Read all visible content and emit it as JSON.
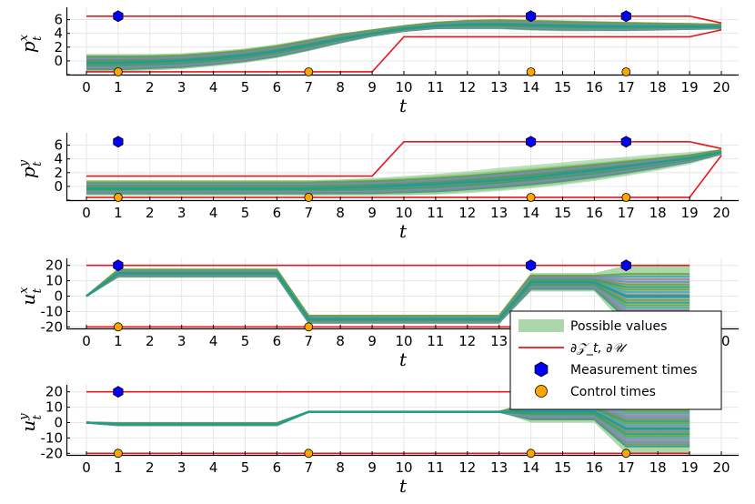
{
  "colors": {
    "band": "#8fca8f",
    "boundary": "#e8171b",
    "measurement": "#0000ff",
    "control": "#ffa500",
    "trajectories": [
      "#1f9e89",
      "#8a8a4a",
      "#5b8fc7",
      "#b07aa1",
      "#3aa6c7",
      "#6e9e3a"
    ]
  },
  "legend": {
    "items": [
      {
        "label": "Possible values",
        "kind": "band"
      },
      {
        "label": "∂𝒵_t, ∂𝒰",
        "kind": "boundary"
      },
      {
        "label": "Measurement times",
        "kind": "measurement"
      },
      {
        "label": "Control times",
        "kind": "control"
      }
    ]
  },
  "chart_data": [
    {
      "type": "area",
      "xlabel": "t",
      "ylabel": "p",
      "ylabel_sup": "x",
      "ylabel_sub": "t",
      "xlim": [
        0,
        20
      ],
      "ylim": [
        -2,
        7
      ],
      "xticks": [
        0,
        1,
        2,
        3,
        4,
        5,
        6,
        7,
        8,
        9,
        10,
        11,
        12,
        13,
        14,
        15,
        16,
        17,
        18,
        19,
        20
      ],
      "yticks": [
        -2,
        0,
        2,
        4,
        6
      ],
      "ytick_labels": [
        "",
        "0",
        "2",
        "4",
        "6"
      ],
      "band": {
        "x": [
          0,
          1,
          2,
          3,
          4,
          5,
          6,
          7,
          8,
          9,
          10,
          11,
          12,
          13,
          14,
          15,
          16,
          17,
          18,
          19,
          20
        ],
        "upper": [
          1.0,
          1.0,
          1.0,
          1.1,
          1.4,
          1.8,
          2.4,
          3.2,
          4.0,
          4.6,
          5.2,
          5.7,
          6.0,
          6.1,
          6.0,
          5.9,
          5.8,
          5.7,
          5.6,
          5.5,
          5.4
        ],
        "lower": [
          -1.6,
          -1.6,
          -1.4,
          -1.2,
          -0.8,
          -0.3,
          0.4,
          1.4,
          2.5,
          3.5,
          4.2,
          4.6,
          4.6,
          4.6,
          4.4,
          4.3,
          4.3,
          4.3,
          4.4,
          4.5,
          4.6
        ]
      },
      "mean": [
        -0.3,
        -0.3,
        -0.2,
        0.0,
        0.3,
        0.8,
        1.4,
        2.3,
        3.2,
        4.0,
        4.7,
        5.1,
        5.3,
        5.3,
        5.2,
        5.1,
        5.0,
        5.0,
        5.0,
        5.0,
        5.0
      ],
      "upper_bound": {
        "x": [
          0,
          19,
          20
        ],
        "y": [
          6.5,
          6.5,
          5.5
        ]
      },
      "lower_bound": {
        "x": [
          0,
          9,
          10,
          19,
          20
        ],
        "y": [
          -1.6,
          -1.6,
          3.5,
          3.5,
          4.5
        ]
      },
      "measurement_points": [
        {
          "x": 1,
          "y": 6.5
        },
        {
          "x": 14,
          "y": 6.5
        },
        {
          "x": 17,
          "y": 6.5
        }
      ],
      "control_points": [
        {
          "x": 1,
          "y": -1.6
        },
        {
          "x": 7,
          "y": -1.6
        },
        {
          "x": 14,
          "y": -1.6
        },
        {
          "x": 17,
          "y": -1.6
        }
      ]
    },
    {
      "type": "area",
      "xlabel": "t",
      "ylabel": "p",
      "ylabel_sup": "y",
      "ylabel_sub": "t",
      "xlim": [
        0,
        20
      ],
      "ylim": [
        -2,
        7
      ],
      "xticks": [
        0,
        1,
        2,
        3,
        4,
        5,
        6,
        7,
        8,
        9,
        10,
        11,
        12,
        13,
        14,
        15,
        16,
        17,
        18,
        19,
        20
      ],
      "yticks": [
        -2,
        0,
        2,
        4,
        6
      ],
      "ytick_labels": [
        "",
        "0",
        "2",
        "4",
        "6"
      ],
      "band": {
        "x": [
          0,
          1,
          2,
          3,
          4,
          5,
          6,
          7,
          8,
          9,
          10,
          11,
          12,
          13,
          14,
          15,
          16,
          17,
          18,
          19,
          20
        ],
        "upper": [
          0.9,
          0.9,
          0.9,
          0.9,
          0.9,
          0.9,
          0.9,
          0.9,
          1.0,
          1.1,
          1.3,
          1.6,
          1.9,
          2.3,
          2.7,
          3.1,
          3.5,
          3.9,
          4.3,
          4.7,
          5.4
        ],
        "lower": [
          -1.3,
          -1.3,
          -1.3,
          -1.3,
          -1.3,
          -1.3,
          -1.3,
          -1.3,
          -1.3,
          -1.3,
          -1.2,
          -1.1,
          -0.8,
          -0.5,
          -0.1,
          0.4,
          1.0,
          1.7,
          2.5,
          3.4,
          4.6
        ],
        "outer_upper": [
          0.9,
          0.9,
          0.9,
          0.9,
          0.9,
          0.9,
          0.9,
          0.9,
          1.0,
          1.2,
          1.5,
          1.8,
          2.2,
          2.7,
          3.1,
          3.5,
          3.9,
          4.3,
          4.7,
          5.0,
          5.4
        ],
        "outer_lower": [
          -1.3,
          -1.3,
          -1.3,
          -1.3,
          -1.3,
          -1.3,
          -1.3,
          -1.3,
          -1.3,
          -1.3,
          -1.3,
          -1.2,
          -1.0,
          -0.7,
          -0.3,
          0.2,
          0.8,
          1.5,
          2.3,
          3.2,
          4.6
        ]
      },
      "mean": [
        -0.3,
        -0.3,
        -0.3,
        -0.3,
        -0.3,
        -0.3,
        -0.3,
        -0.3,
        -0.2,
        -0.1,
        0.1,
        0.3,
        0.6,
        0.9,
        1.3,
        1.8,
        2.3,
        2.9,
        3.5,
        4.1,
        5.0
      ],
      "upper_bound": {
        "x": [
          0,
          9,
          10,
          19,
          20
        ],
        "y": [
          1.5,
          1.5,
          6.5,
          6.5,
          5.5
        ]
      },
      "lower_bound": {
        "x": [
          0,
          19,
          20
        ],
        "y": [
          -1.6,
          -1.6,
          4.5
        ]
      },
      "measurement_points": [
        {
          "x": 1,
          "y": 6.5
        },
        {
          "x": 14,
          "y": 6.5
        },
        {
          "x": 17,
          "y": 6.5
        }
      ],
      "control_points": [
        {
          "x": 1,
          "y": -1.6
        },
        {
          "x": 7,
          "y": -1.6
        },
        {
          "x": 14,
          "y": -1.6
        },
        {
          "x": 17,
          "y": -1.6
        }
      ]
    },
    {
      "type": "area",
      "xlabel": "t",
      "ylabel": "u",
      "ylabel_sup": "x",
      "ylabel_sub": "t",
      "xlim": [
        0,
        20
      ],
      "ylim": [
        -21,
        21
      ],
      "xticks": [
        0,
        1,
        2,
        3,
        4,
        5,
        6,
        7,
        8,
        9,
        10,
        11,
        12,
        13,
        14,
        15,
        16,
        17,
        18,
        19,
        20
      ],
      "yticks": [
        -20,
        -10,
        0,
        10,
        20
      ],
      "ytick_labels": [
        "-20",
        "-10",
        "0",
        "10",
        "20"
      ],
      "band": {
        "x": [
          0,
          1,
          6,
          7,
          13,
          14,
          16,
          17,
          19
        ],
        "upper": [
          0,
          18,
          18,
          -12,
          -12,
          15,
          15,
          20,
          20
        ],
        "lower": [
          0,
          12,
          12,
          -18,
          -18,
          3,
          3,
          -20,
          -20
        ]
      },
      "mean": [
        0,
        15,
        15,
        -15,
        -15,
        9,
        9,
        0,
        0
      ],
      "upper_bound": {
        "x": [
          0,
          19
        ],
        "y": [
          20,
          20
        ]
      },
      "lower_bound": {
        "x": [
          0,
          19
        ],
        "y": [
          -20,
          -20
        ]
      },
      "measurement_points": [
        {
          "x": 1,
          "y": 20
        },
        {
          "x": 14,
          "y": 20
        },
        {
          "x": 17,
          "y": 20
        }
      ],
      "control_points": [
        {
          "x": 1,
          "y": -20
        },
        {
          "x": 7,
          "y": -20
        }
      ]
    },
    {
      "type": "area",
      "xlabel": "t",
      "ylabel": "u",
      "ylabel_sup": "y",
      "ylabel_sub": "t",
      "xlim": [
        0,
        20
      ],
      "ylim": [
        -21,
        21
      ],
      "xticks": [
        0,
        1,
        2,
        3,
        4,
        5,
        6,
        7,
        8,
        9,
        10,
        11,
        12,
        13,
        14,
        15,
        16,
        17,
        18,
        19,
        20
      ],
      "yticks": [
        -20,
        -10,
        0,
        10,
        20
      ],
      "ytick_labels": [
        "-20",
        "-10",
        "0",
        "10",
        "20"
      ],
      "band": {
        "x": [
          0,
          1,
          6,
          7,
          13,
          14,
          16,
          17,
          19
        ],
        "upper": [
          0,
          0,
          0,
          7,
          7,
          15,
          15,
          12,
          12
        ],
        "lower": [
          0,
          -2,
          -2,
          7,
          7,
          0,
          0,
          -20,
          -20
        ]
      },
      "mean": [
        0,
        -1,
        -1,
        7,
        7,
        7,
        7,
        -4,
        -4
      ],
      "upper_bound": {
        "x": [
          0,
          19
        ],
        "y": [
          20,
          20
        ]
      },
      "lower_bound": {
        "x": [
          0,
          19
        ],
        "y": [
          -20,
          -20
        ]
      },
      "measurement_points": [
        {
          "x": 1,
          "y": 20
        }
      ],
      "control_points": [
        {
          "x": 1,
          "y": -20
        },
        {
          "x": 7,
          "y": -20
        },
        {
          "x": 14,
          "y": -20
        },
        {
          "x": 17,
          "y": -20
        }
      ]
    }
  ]
}
